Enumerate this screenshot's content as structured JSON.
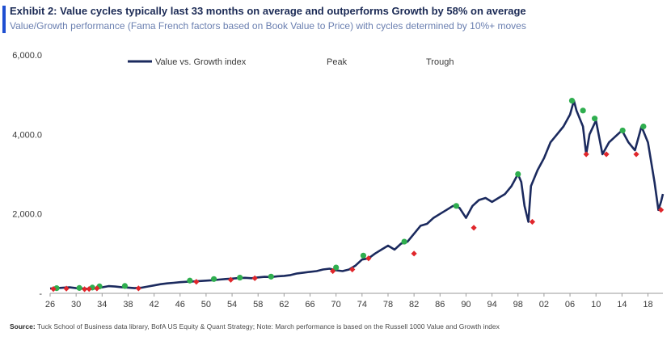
{
  "title": "Exhibit 2: Value cycles typically last 33 months on average and outperforms Growth by 58% on average",
  "subtitle": "Value/Growth performance (Fama French factors based on Book Value to Price) with cycles determined by 10%+ moves",
  "source_label": "Source:",
  "source_text": "Tuck School of Business data library, BofA US Equity & Quant Strategy; Note: March performance is based on the Russell 1000 Value and Growth index",
  "colors": {
    "line": "#1b2a5e",
    "peak": "#2fae4f",
    "trough": "#e0262b",
    "accent": "#1f4fd1"
  },
  "chart_data": {
    "type": "line",
    "title": "",
    "xlabel": "",
    "ylabel": "",
    "ylim": [
      0,
      6000
    ],
    "xlim": [
      1926,
      2020.3
    ],
    "grid": false,
    "legend_position": "top",
    "y_ticks": [
      {
        "value": 6000,
        "label": "6,000.0"
      },
      {
        "value": 4000,
        "label": "4,000.0"
      },
      {
        "value": 2000,
        "label": "2,000.0"
      },
      {
        "value": 0,
        "label": "-"
      }
    ],
    "x_ticks": [
      {
        "value": 1926,
        "label": "26"
      },
      {
        "value": 1930,
        "label": "30"
      },
      {
        "value": 1934,
        "label": "34"
      },
      {
        "value": 1938,
        "label": "38"
      },
      {
        "value": 1942,
        "label": "42"
      },
      {
        "value": 1946,
        "label": "46"
      },
      {
        "value": 1950,
        "label": "50"
      },
      {
        "value": 1954,
        "label": "54"
      },
      {
        "value": 1958,
        "label": "58"
      },
      {
        "value": 1962,
        "label": "62"
      },
      {
        "value": 1966,
        "label": "66"
      },
      {
        "value": 1970,
        "label": "70"
      },
      {
        "value": 1974,
        "label": "74"
      },
      {
        "value": 1978,
        "label": "78"
      },
      {
        "value": 1982,
        "label": "82"
      },
      {
        "value": 1986,
        "label": "86"
      },
      {
        "value": 1990,
        "label": "90"
      },
      {
        "value": 1994,
        "label": "94"
      },
      {
        "value": 1998,
        "label": "98"
      },
      {
        "value": 2002,
        "label": "02"
      },
      {
        "value": 2006,
        "label": "06"
      },
      {
        "value": 2010,
        "label": "10"
      },
      {
        "value": 2014,
        "label": "14"
      },
      {
        "value": 2018,
        "label": "18"
      }
    ],
    "series": [
      {
        "name": "Value vs. Growth index",
        "x": [
          1926,
          1927,
          1928,
          1929,
          1930,
          1931,
          1932,
          1933,
          1934,
          1935,
          1936,
          1937,
          1938,
          1939,
          1940,
          1941,
          1942,
          1943,
          1944,
          1945,
          1946,
          1947,
          1948,
          1949,
          1950,
          1951,
          1952,
          1953,
          1954,
          1955,
          1956,
          1957,
          1958,
          1959,
          1960,
          1961,
          1962,
          1963,
          1964,
          1965,
          1966,
          1967,
          1968,
          1969,
          1970,
          1971,
          1972,
          1973,
          1974,
          1975,
          1976,
          1977,
          1978,
          1979,
          1980,
          1981,
          1982,
          1983,
          1984,
          1985,
          1986,
          1987,
          1988,
          1989,
          1990,
          1991,
          1992,
          1993,
          1994,
          1995,
          1996,
          1997,
          1998,
          1998.5,
          1999,
          1999.6,
          2000,
          2001,
          2002,
          2003,
          2004,
          2005,
          2006,
          2006.6,
          2007,
          2007.5,
          2008,
          2008.5,
          2009,
          2010,
          2011,
          2012,
          2013,
          2014,
          2015,
          2016,
          2017,
          2018,
          2019,
          2019.6,
          2020,
          2020.3
        ],
        "y": [
          120,
          130,
          140,
          150,
          130,
          120,
          110,
          125,
          150,
          180,
          170,
          155,
          145,
          130,
          140,
          170,
          200,
          230,
          250,
          265,
          280,
          290,
          300,
          310,
          320,
          330,
          345,
          360,
          370,
          385,
          390,
          380,
          400,
          415,
          410,
          430,
          440,
          460,
          500,
          520,
          540,
          560,
          600,
          620,
          580,
          560,
          600,
          700,
          850,
          880,
          1000,
          1100,
          1200,
          1100,
          1250,
          1300,
          1500,
          1700,
          1750,
          1900,
          2000,
          2100,
          2200,
          2150,
          1900,
          2200,
          2350,
          2400,
          2300,
          2400,
          2500,
          2700,
          3000,
          2800,
          2200,
          1800,
          2700,
          3100,
          3400,
          3800,
          4000,
          4200,
          4500,
          4850,
          4600,
          4400,
          4200,
          3500,
          4000,
          4350,
          3500,
          3800,
          3950,
          4100,
          3800,
          3600,
          4200,
          3800,
          2800,
          2100,
          2300,
          2500
        ]
      }
    ],
    "peaks": [
      {
        "x": 1927,
        "y": 130
      },
      {
        "x": 1930.5,
        "y": 135
      },
      {
        "x": 1932.5,
        "y": 145
      },
      {
        "x": 1933.6,
        "y": 175
      },
      {
        "x": 1937.5,
        "y": 185
      },
      {
        "x": 1947.5,
        "y": 320
      },
      {
        "x": 1951.2,
        "y": 360
      },
      {
        "x": 1955.2,
        "y": 395
      },
      {
        "x": 1960,
        "y": 420
      },
      {
        "x": 1970,
        "y": 650
      },
      {
        "x": 1974.2,
        "y": 950
      },
      {
        "x": 1980.5,
        "y": 1300
      },
      {
        "x": 1988.5,
        "y": 2200
      },
      {
        "x": 1998,
        "y": 3000
      },
      {
        "x": 2006.3,
        "y": 4850
      },
      {
        "x": 2008,
        "y": 4600
      },
      {
        "x": 2009.8,
        "y": 4400
      },
      {
        "x": 2014.1,
        "y": 4100
      },
      {
        "x": 2017.3,
        "y": 4200
      }
    ],
    "troughs": [
      {
        "x": 1926.5,
        "y": 110
      },
      {
        "x": 1928.5,
        "y": 120
      },
      {
        "x": 1931.3,
        "y": 105
      },
      {
        "x": 1932,
        "y": 110
      },
      {
        "x": 1933.2,
        "y": 125
      },
      {
        "x": 1939.6,
        "y": 125
      },
      {
        "x": 1948.5,
        "y": 290
      },
      {
        "x": 1953.8,
        "y": 340
      },
      {
        "x": 1957.5,
        "y": 380
      },
      {
        "x": 1969.5,
        "y": 560
      },
      {
        "x": 1972.5,
        "y": 600
      },
      {
        "x": 1975,
        "y": 880
      },
      {
        "x": 1982,
        "y": 1000
      },
      {
        "x": 1991.2,
        "y": 1650
      },
      {
        "x": 2000.2,
        "y": 1800
      },
      {
        "x": 2008.5,
        "y": 3500
      },
      {
        "x": 2011.6,
        "y": 3500
      },
      {
        "x": 2016.2,
        "y": 3500
      },
      {
        "x": 2020,
        "y": 2100
      }
    ]
  },
  "legend": {
    "line_label": "Value vs. Growth index",
    "peak_label": "Peak",
    "trough_label": "Trough"
  }
}
